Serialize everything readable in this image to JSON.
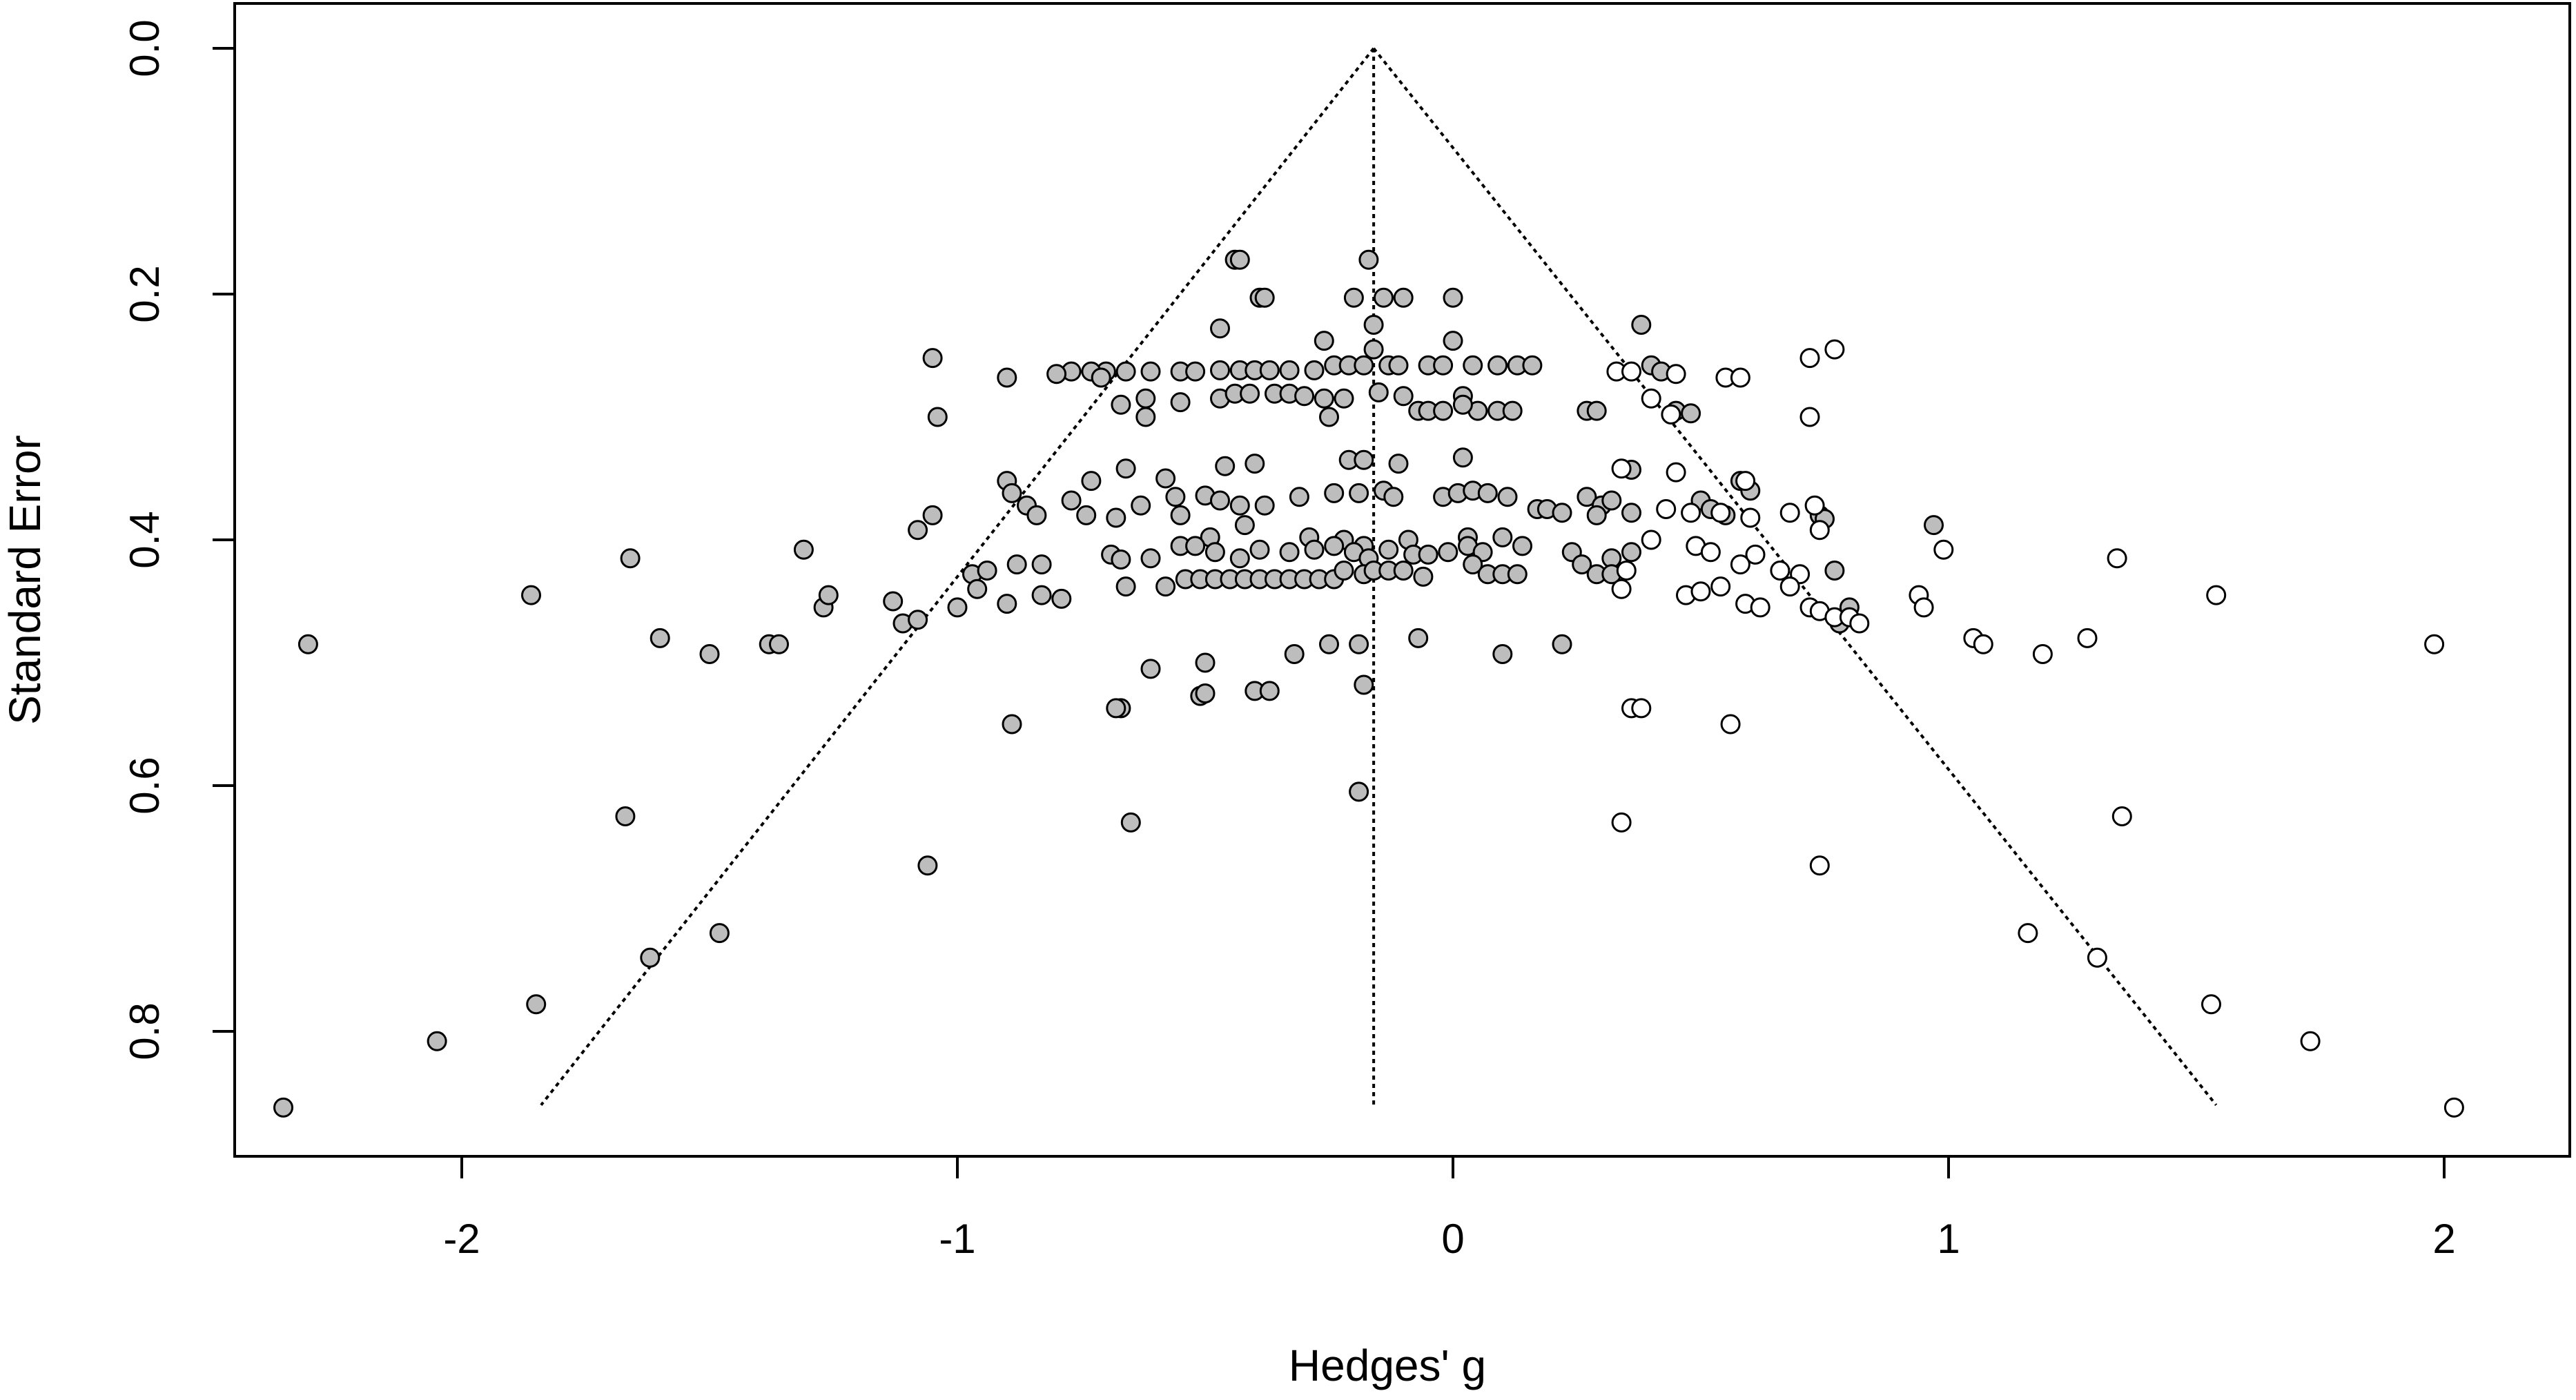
{
  "chart_data": {
    "type": "scatter",
    "title": "",
    "xlabel": "Hedges' g",
    "ylabel": "Standard Error",
    "xlim": [
      -2.45,
      2.25
    ],
    "ylim": [
      0.0,
      0.9
    ],
    "y_reversed": true,
    "x_ticks": [
      "-2",
      "-1",
      "0",
      "1",
      "2"
    ],
    "x_tick_values": [
      -2,
      -1,
      0,
      1,
      2
    ],
    "y_ticks": [
      "0.0",
      "0.2",
      "0.4",
      "0.6",
      "0.8"
    ],
    "y_tick_values": [
      0.0,
      0.2,
      0.4,
      0.6,
      0.8
    ],
    "grid": false,
    "funnel": {
      "center_x": -0.16,
      "apex_y": 0.0,
      "base_y": 0.86,
      "left_x": -1.84,
      "right_x": 1.54
    },
    "colors": {
      "observed_fill": "#bdbdbd",
      "imputed_fill": "#ffffff",
      "stroke": "#000000"
    },
    "series": [
      {
        "kind": "observed",
        "points": [
          [
            -0.44,
            0.172
          ],
          [
            -0.43,
            0.172
          ],
          [
            -0.17,
            0.172
          ],
          [
            -0.39,
            0.203
          ],
          [
            -0.38,
            0.203
          ],
          [
            -0.2,
            0.203
          ],
          [
            -0.14,
            0.203
          ],
          [
            -0.1,
            0.203
          ],
          [
            0.0,
            0.203
          ],
          [
            -0.47,
            0.228
          ],
          [
            -0.16,
            0.225
          ],
          [
            -0.26,
            0.238
          ],
          [
            -0.16,
            0.245
          ],
          [
            0.0,
            0.238
          ],
          [
            -1.05,
            0.252
          ],
          [
            -0.7,
            0.263
          ],
          [
            -0.73,
            0.263
          ],
          [
            -0.77,
            0.263
          ],
          [
            -0.66,
            0.263
          ],
          [
            -0.61,
            0.263
          ],
          [
            -0.55,
            0.263
          ],
          [
            -0.52,
            0.263
          ],
          [
            -0.47,
            0.262
          ],
          [
            -0.43,
            0.262
          ],
          [
            -0.4,
            0.262
          ],
          [
            -0.37,
            0.262
          ],
          [
            -0.33,
            0.262
          ],
          [
            -0.28,
            0.262
          ],
          [
            -0.24,
            0.258
          ],
          [
            -0.21,
            0.258
          ],
          [
            -0.18,
            0.258
          ],
          [
            -0.13,
            0.258
          ],
          [
            -0.11,
            0.258
          ],
          [
            -0.05,
            0.258
          ],
          [
            -0.02,
            0.258
          ],
          [
            0.04,
            0.258
          ],
          [
            0.09,
            0.258
          ],
          [
            0.13,
            0.258
          ],
          [
            0.16,
            0.258
          ],
          [
            0.4,
            0.258
          ],
          [
            0.42,
            0.263
          ],
          [
            0.38,
            0.225
          ],
          [
            -0.9,
            0.268
          ],
          [
            -0.71,
            0.268
          ],
          [
            -0.8,
            0.265
          ],
          [
            -1.04,
            0.3
          ],
          [
            -0.62,
            0.3
          ],
          [
            -0.55,
            0.288
          ],
          [
            -0.47,
            0.285
          ],
          [
            -0.44,
            0.281
          ],
          [
            -0.41,
            0.281
          ],
          [
            -0.36,
            0.281
          ],
          [
            -0.33,
            0.281
          ],
          [
            -0.3,
            0.283
          ],
          [
            -0.26,
            0.285
          ],
          [
            -0.22,
            0.285
          ],
          [
            -0.15,
            0.28
          ],
          [
            -0.1,
            0.283
          ],
          [
            -0.07,
            0.295
          ],
          [
            -0.05,
            0.295
          ],
          [
            -0.02,
            0.295
          ],
          [
            0.02,
            0.283
          ],
          [
            0.05,
            0.295
          ],
          [
            0.09,
            0.295
          ],
          [
            0.12,
            0.295
          ],
          [
            0.27,
            0.295
          ],
          [
            0.29,
            0.295
          ],
          [
            0.45,
            0.295
          ],
          [
            0.48,
            0.297
          ],
          [
            0.02,
            0.29
          ],
          [
            -0.25,
            0.3
          ],
          [
            -0.62,
            0.285
          ],
          [
            -0.67,
            0.29
          ],
          [
            -0.9,
            0.352
          ],
          [
            -0.73,
            0.352
          ],
          [
            -0.66,
            0.342
          ],
          [
            -0.58,
            0.35
          ],
          [
            -0.46,
            0.34
          ],
          [
            -0.4,
            0.338
          ],
          [
            -0.21,
            0.335
          ],
          [
            -0.18,
            0.335
          ],
          [
            -0.11,
            0.338
          ],
          [
            0.02,
            0.333
          ],
          [
            0.36,
            0.343
          ],
          [
            0.58,
            0.352
          ],
          [
            -0.89,
            0.362
          ],
          [
            -0.77,
            0.368
          ],
          [
            -0.63,
            0.372
          ],
          [
            -0.56,
            0.365
          ],
          [
            -0.5,
            0.364
          ],
          [
            -0.47,
            0.368
          ],
          [
            -0.43,
            0.372
          ],
          [
            -0.38,
            0.372
          ],
          [
            -0.31,
            0.365
          ],
          [
            -0.24,
            0.362
          ],
          [
            -0.19,
            0.362
          ],
          [
            -0.14,
            0.36
          ],
          [
            -0.12,
            0.365
          ],
          [
            -0.02,
            0.365
          ],
          [
            0.01,
            0.362
          ],
          [
            0.04,
            0.36
          ],
          [
            0.07,
            0.362
          ],
          [
            0.11,
            0.365
          ],
          [
            0.17,
            0.375
          ],
          [
            0.19,
            0.375
          ],
          [
            0.27,
            0.365
          ],
          [
            0.3,
            0.372
          ],
          [
            0.32,
            0.368
          ],
          [
            0.5,
            0.368
          ],
          [
            0.52,
            0.375
          ],
          [
            0.6,
            0.36
          ],
          [
            -1.08,
            0.392
          ],
          [
            -1.05,
            0.38
          ],
          [
            -0.86,
            0.372
          ],
          [
            -0.84,
            0.38
          ],
          [
            -0.74,
            0.38
          ],
          [
            -0.68,
            0.382
          ],
          [
            -0.55,
            0.38
          ],
          [
            -0.49,
            0.398
          ],
          [
            -0.42,
            0.388
          ],
          [
            -0.29,
            0.398
          ],
          [
            -0.22,
            0.4
          ],
          [
            -0.18,
            0.405
          ],
          [
            -0.09,
            0.4
          ],
          [
            0.03,
            0.398
          ],
          [
            0.1,
            0.398
          ],
          [
            0.22,
            0.378
          ],
          [
            0.29,
            0.38
          ],
          [
            0.36,
            0.378
          ],
          [
            0.55,
            0.38
          ],
          [
            0.74,
            0.38
          ],
          [
            0.75,
            0.383
          ],
          [
            0.77,
            0.425
          ],
          [
            -1.31,
            0.408
          ],
          [
            -0.97,
            0.428
          ],
          [
            -0.94,
            0.425
          ],
          [
            -0.88,
            0.42
          ],
          [
            -0.83,
            0.42
          ],
          [
            -0.69,
            0.412
          ],
          [
            -0.67,
            0.416
          ],
          [
            -0.61,
            0.415
          ],
          [
            -0.55,
            0.405
          ],
          [
            -0.52,
            0.405
          ],
          [
            -0.48,
            0.41
          ],
          [
            -0.43,
            0.415
          ],
          [
            -0.39,
            0.408
          ],
          [
            -0.33,
            0.41
          ],
          [
            -0.28,
            0.408
          ],
          [
            -0.24,
            0.405
          ],
          [
            -0.2,
            0.41
          ],
          [
            -0.17,
            0.415
          ],
          [
            -0.13,
            0.408
          ],
          [
            -0.08,
            0.412
          ],
          [
            -0.05,
            0.412
          ],
          [
            -0.01,
            0.41
          ],
          [
            0.03,
            0.405
          ],
          [
            0.06,
            0.41
          ],
          [
            0.14,
            0.405
          ],
          [
            0.24,
            0.41
          ],
          [
            0.32,
            0.415
          ],
          [
            0.36,
            0.41
          ],
          [
            -1.27,
            0.455
          ],
          [
            -1.26,
            0.445
          ],
          [
            -1.13,
            0.45
          ],
          [
            -1.11,
            0.468
          ],
          [
            -1.08,
            0.465
          ],
          [
            -1.0,
            0.455
          ],
          [
            -0.96,
            0.44
          ],
          [
            -0.9,
            0.452
          ],
          [
            -0.83,
            0.445
          ],
          [
            -0.79,
            0.448
          ],
          [
            -0.66,
            0.438
          ],
          [
            -0.58,
            0.438
          ],
          [
            -0.54,
            0.432
          ],
          [
            -0.51,
            0.432
          ],
          [
            -0.48,
            0.432
          ],
          [
            -0.45,
            0.432
          ],
          [
            -0.42,
            0.432
          ],
          [
            -0.39,
            0.432
          ],
          [
            -0.36,
            0.432
          ],
          [
            -0.33,
            0.432
          ],
          [
            -0.3,
            0.432
          ],
          [
            -0.27,
            0.432
          ],
          [
            -0.24,
            0.432
          ],
          [
            -0.22,
            0.425
          ],
          [
            -0.18,
            0.428
          ],
          [
            -0.16,
            0.425
          ],
          [
            -0.13,
            0.425
          ],
          [
            -0.1,
            0.425
          ],
          [
            -0.06,
            0.43
          ],
          [
            0.04,
            0.42
          ],
          [
            0.07,
            0.428
          ],
          [
            0.1,
            0.428
          ],
          [
            0.13,
            0.428
          ],
          [
            0.26,
            0.42
          ],
          [
            0.29,
            0.428
          ],
          [
            0.32,
            0.428
          ],
          [
            0.8,
            0.455
          ],
          [
            0.78,
            0.468
          ],
          [
            -1.86,
            0.445
          ],
          [
            -1.66,
            0.415
          ],
          [
            -1.6,
            0.48
          ],
          [
            -1.5,
            0.493
          ],
          [
            -1.38,
            0.485
          ],
          [
            -1.36,
            0.485
          ],
          [
            -2.31,
            0.485
          ],
          [
            -0.61,
            0.505
          ],
          [
            -0.5,
            0.5
          ],
          [
            -0.32,
            0.493
          ],
          [
            -0.25,
            0.485
          ],
          [
            -0.19,
            0.485
          ],
          [
            -0.07,
            0.48
          ],
          [
            0.1,
            0.493
          ],
          [
            0.22,
            0.485
          ],
          [
            0.97,
            0.388
          ],
          [
            -0.67,
            0.537
          ],
          [
            -0.68,
            0.537
          ],
          [
            -0.51,
            0.527
          ],
          [
            -0.5,
            0.525
          ],
          [
            -0.4,
            0.523
          ],
          [
            -0.37,
            0.523
          ],
          [
            -0.89,
            0.55
          ],
          [
            -0.18,
            0.518
          ],
          [
            -1.06,
            0.665
          ],
          [
            -0.65,
            0.63
          ],
          [
            -0.19,
            0.605
          ],
          [
            -1.67,
            0.625
          ],
          [
            -1.62,
            0.74
          ],
          [
            -1.48,
            0.72
          ],
          [
            -1.85,
            0.778
          ],
          [
            -2.05,
            0.808
          ],
          [
            -2.36,
            0.862
          ]
        ]
      },
      {
        "kind": "imputed",
        "points": [
          [
            0.33,
            0.263
          ],
          [
            0.36,
            0.263
          ],
          [
            0.45,
            0.265
          ],
          [
            0.55,
            0.268
          ],
          [
            0.58,
            0.268
          ],
          [
            0.72,
            0.252
          ],
          [
            0.77,
            0.245
          ],
          [
            0.72,
            0.3
          ],
          [
            0.4,
            0.285
          ],
          [
            0.44,
            0.298
          ],
          [
            0.34,
            0.342
          ],
          [
            0.45,
            0.345
          ],
          [
            0.59,
            0.352
          ],
          [
            0.43,
            0.375
          ],
          [
            0.48,
            0.378
          ],
          [
            0.54,
            0.378
          ],
          [
            0.6,
            0.382
          ],
          [
            0.68,
            0.378
          ],
          [
            0.74,
            0.392
          ],
          [
            0.73,
            0.372
          ],
          [
            0.4,
            0.4
          ],
          [
            0.49,
            0.405
          ],
          [
            0.52,
            0.41
          ],
          [
            0.58,
            0.42
          ],
          [
            0.61,
            0.412
          ],
          [
            0.66,
            0.425
          ],
          [
            0.7,
            0.428
          ],
          [
            0.35,
            0.425
          ],
          [
            0.34,
            0.44
          ],
          [
            0.47,
            0.445
          ],
          [
            0.5,
            0.442
          ],
          [
            0.54,
            0.438
          ],
          [
            0.59,
            0.452
          ],
          [
            0.62,
            0.455
          ],
          [
            0.68,
            0.438
          ],
          [
            0.72,
            0.455
          ],
          [
            0.74,
            0.458
          ],
          [
            0.77,
            0.463
          ],
          [
            0.8,
            0.463
          ],
          [
            0.82,
            0.468
          ],
          [
            0.94,
            0.445
          ],
          [
            0.95,
            0.455
          ],
          [
            0.99,
            0.408
          ],
          [
            1.05,
            0.48
          ],
          [
            1.07,
            0.485
          ],
          [
            1.19,
            0.493
          ],
          [
            1.28,
            0.48
          ],
          [
            1.34,
            0.415
          ],
          [
            1.54,
            0.445
          ],
          [
            1.98,
            0.485
          ],
          [
            0.34,
            0.63
          ],
          [
            0.36,
            0.537
          ],
          [
            0.38,
            0.537
          ],
          [
            0.56,
            0.55
          ],
          [
            0.74,
            0.665
          ],
          [
            1.35,
            0.625
          ],
          [
            1.16,
            0.72
          ],
          [
            1.3,
            0.74
          ],
          [
            1.53,
            0.778
          ],
          [
            1.73,
            0.808
          ],
          [
            2.02,
            0.862
          ]
        ]
      }
    ]
  }
}
